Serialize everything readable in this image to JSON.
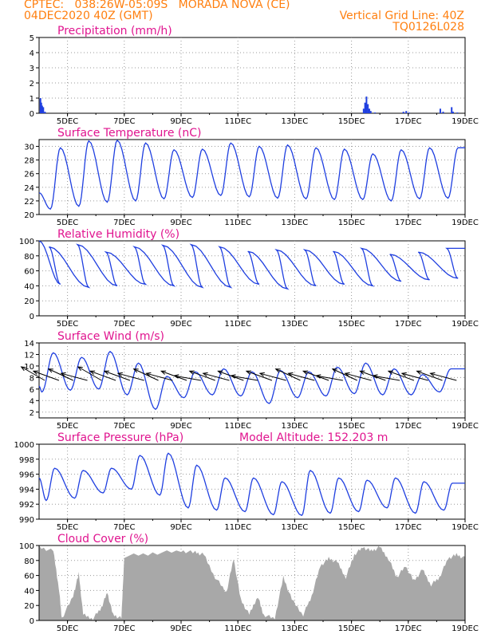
{
  "header": {
    "line1": "CPTEC:   038:26W-05:09S   MORADA NOVA (CE)",
    "line2": "04DEC2020 40Z (GMT)",
    "right1": "Vertical Grid Line: 40Z",
    "right2": "TQ0126L028"
  },
  "colors": {
    "header": "#ff7f0f",
    "titles": "#e0148f",
    "series": "#1f3fe0",
    "cloud": "#a8a8a8",
    "arrows": "#000000",
    "grid": "#9a9a9a"
  },
  "chart_data": [
    {
      "type": "bar",
      "title": "Precipitation (mm/h)",
      "ylim": [
        0,
        5
      ],
      "yticks": [
        "0",
        "1",
        "2",
        "3",
        "4",
        "5"
      ],
      "xticks": [
        "5DEC",
        "7DEC",
        "9DEC",
        "11DEC",
        "13DEC",
        "15DEC",
        "17DEC",
        "19DEC"
      ],
      "xlim_days": [
        4.0,
        19.0
      ],
      "grid": true,
      "series": [
        {
          "points": [
            [
              4.02,
              1.0
            ],
            [
              4.05,
              0.7
            ],
            [
              4.08,
              0.5
            ],
            [
              4.12,
              0.4
            ],
            [
              4.18,
              0.1
            ],
            [
              15.4,
              0.3
            ],
            [
              15.45,
              0.7
            ],
            [
              15.5,
              1.1
            ],
            [
              15.55,
              0.6
            ],
            [
              15.6,
              0.3
            ],
            [
              15.65,
              0.15
            ],
            [
              15.8,
              0.05
            ],
            [
              16.8,
              0.1
            ],
            [
              16.9,
              0.15
            ],
            [
              17.0,
              0.05
            ],
            [
              18.1,
              0.3
            ],
            [
              18.2,
              0.1
            ],
            [
              18.5,
              0.4
            ],
            [
              18.55,
              0.1
            ],
            [
              18.7,
              0.05
            ]
          ]
        }
      ]
    },
    {
      "type": "line",
      "title": "Surface Temperature (nC)",
      "ylim": [
        20,
        31
      ],
      "yticks": [
        "20",
        "22",
        "24",
        "26",
        "28",
        "30"
      ],
      "xticks": [
        "5DEC",
        "7DEC",
        "9DEC",
        "11DEC",
        "13DEC",
        "15DEC",
        "17DEC",
        "19DEC"
      ],
      "grid": true,
      "daily_max": [
        29.8,
        30.8,
        30.9,
        30.5,
        29.5,
        29.6,
        30.5,
        30.0,
        30.2,
        29.8,
        29.6,
        28.9,
        29.5,
        29.8,
        29.8
      ],
      "daily_min": [
        20.8,
        21.2,
        21.8,
        22.0,
        22.3,
        22.5,
        22.8,
        22.6,
        22.4,
        22.3,
        22.2,
        22.2,
        22.0,
        22.3,
        22.4
      ],
      "start_value": 23.2
    },
    {
      "type": "line",
      "title": "Relative Humidity (%)",
      "ylim": [
        0,
        100
      ],
      "yticks": [
        "0",
        "20",
        "40",
        "60",
        "80",
        "100"
      ],
      "xticks": [
        "5DEC",
        "7DEC",
        "9DEC",
        "11DEC",
        "13DEC",
        "15DEC",
        "17DEC",
        "19DEC"
      ],
      "grid": true,
      "daily_max": [
        92,
        95,
        85,
        92,
        94,
        95,
        92,
        86,
        88,
        88,
        86,
        90,
        82,
        85,
        90
      ],
      "daily_min": [
        42,
        38,
        40,
        42,
        40,
        38,
        38,
        42,
        36,
        40,
        42,
        40,
        46,
        48,
        50
      ],
      "start_value": 100
    },
    {
      "type": "line",
      "title": "Surface Wind (m/s)",
      "ylim": [
        1,
        14
      ],
      "yticks": [
        "2",
        "4",
        "6",
        "8",
        "10",
        "12",
        "14"
      ],
      "xticks": [
        "5DEC",
        "7DEC",
        "9DEC",
        "11DEC",
        "13DEC",
        "15DEC",
        "17DEC",
        "19DEC"
      ],
      "grid": true,
      "speed_max": [
        12.3,
        11.5,
        12.5,
        10.5,
        8.2,
        9.0,
        9.5,
        9.0,
        9.2,
        9.0,
        9.8,
        10.5,
        9.5,
        8.5,
        9.5
      ],
      "speed_min": [
        5.5,
        5.8,
        6.0,
        5.0,
        2.5,
        4.5,
        5.0,
        4.8,
        3.5,
        4.5,
        4.8,
        5.2,
        5.0,
        5.0,
        5.5
      ],
      "arrow_times": [
        4.2,
        4.7,
        5.2,
        5.7,
        6.2,
        6.7,
        7.2,
        7.7,
        8.2,
        8.7,
        9.2,
        9.7,
        10.2,
        10.7,
        11.2,
        11.7,
        12.2,
        12.7,
        13.2,
        13.7,
        14.2,
        14.7,
        15.2,
        15.7,
        16.2,
        16.7,
        17.2,
        17.7,
        18.2,
        18.7
      ],
      "arrow_dirs_deg": [
        30,
        20,
        25,
        15,
        30,
        20,
        20,
        15,
        25,
        15,
        20,
        10,
        20,
        15,
        20,
        10,
        20,
        15,
        25,
        15,
        20,
        10,
        25,
        15,
        20,
        10,
        20,
        15,
        20,
        15
      ]
    },
    {
      "type": "line",
      "title": "Surface Pressure (hPa)",
      "subtitle": "Model Altitude: 152.203  m",
      "ylim": [
        990,
        1000
      ],
      "yticks": [
        "990",
        "992",
        "994",
        "996",
        "998",
        "1000"
      ],
      "xticks": [
        "5DEC",
        "7DEC",
        "9DEC",
        "11DEC",
        "13DEC",
        "15DEC",
        "17DEC",
        "19DEC"
      ],
      "grid": true,
      "daily_max": [
        996.8,
        996.5,
        996.8,
        998.5,
        998.8,
        997.2,
        995.5,
        995.5,
        995.0,
        996.5,
        995.5,
        995.2,
        995.5,
        995.0,
        994.8
      ],
      "daily_min": [
        992.5,
        992.8,
        993.5,
        994.0,
        993.2,
        991.5,
        991.2,
        991.0,
        990.6,
        990.5,
        990.8,
        991.0,
        991.5,
        990.8,
        991.2
      ],
      "start_value": 995.5
    },
    {
      "type": "area",
      "title": "Cloud Cover (%)",
      "ylim": [
        0,
        100
      ],
      "yticks": [
        "0",
        "20",
        "40",
        "60",
        "80",
        "100"
      ],
      "xticks": [
        "5DEC",
        "7DEC",
        "9DEC",
        "11DEC",
        "13DEC",
        "15DEC",
        "17DEC",
        "19DEC"
      ],
      "grid": true,
      "level_points": [
        [
          4.0,
          100
        ],
        [
          4.5,
          95
        ],
        [
          4.7,
          45
        ],
        [
          4.8,
          5
        ],
        [
          5.2,
          35
        ],
        [
          5.4,
          65
        ],
        [
          5.55,
          10
        ],
        [
          5.9,
          5
        ],
        [
          6.2,
          20
        ],
        [
          6.4,
          40
        ],
        [
          6.6,
          10
        ],
        [
          6.9,
          5
        ],
        [
          7.0,
          88
        ],
        [
          8.0,
          92
        ],
        [
          9.0,
          95
        ],
        [
          9.5,
          93
        ],
        [
          9.8,
          90
        ],
        [
          10.2,
          60
        ],
        [
          10.6,
          40
        ],
        [
          10.85,
          85
        ],
        [
          11.1,
          30
        ],
        [
          11.4,
          10
        ],
        [
          11.7,
          35
        ],
        [
          11.9,
          10
        ],
        [
          12.3,
          5
        ],
        [
          12.6,
          60
        ],
        [
          12.9,
          30
        ],
        [
          13.3,
          10
        ],
        [
          13.6,
          35
        ],
        [
          13.9,
          75
        ],
        [
          14.2,
          85
        ],
        [
          14.5,
          80
        ],
        [
          14.8,
          60
        ],
        [
          15.1,
          90
        ],
        [
          15.4,
          100
        ],
        [
          15.7,
          95
        ],
        [
          16.0,
          100
        ],
        [
          16.3,
          85
        ],
        [
          16.6,
          60
        ],
        [
          16.9,
          75
        ],
        [
          17.2,
          55
        ],
        [
          17.5,
          70
        ],
        [
          17.8,
          50
        ],
        [
          18.1,
          60
        ],
        [
          18.4,
          85
        ],
        [
          18.7,
          90
        ],
        [
          19.0,
          85
        ]
      ]
    }
  ]
}
